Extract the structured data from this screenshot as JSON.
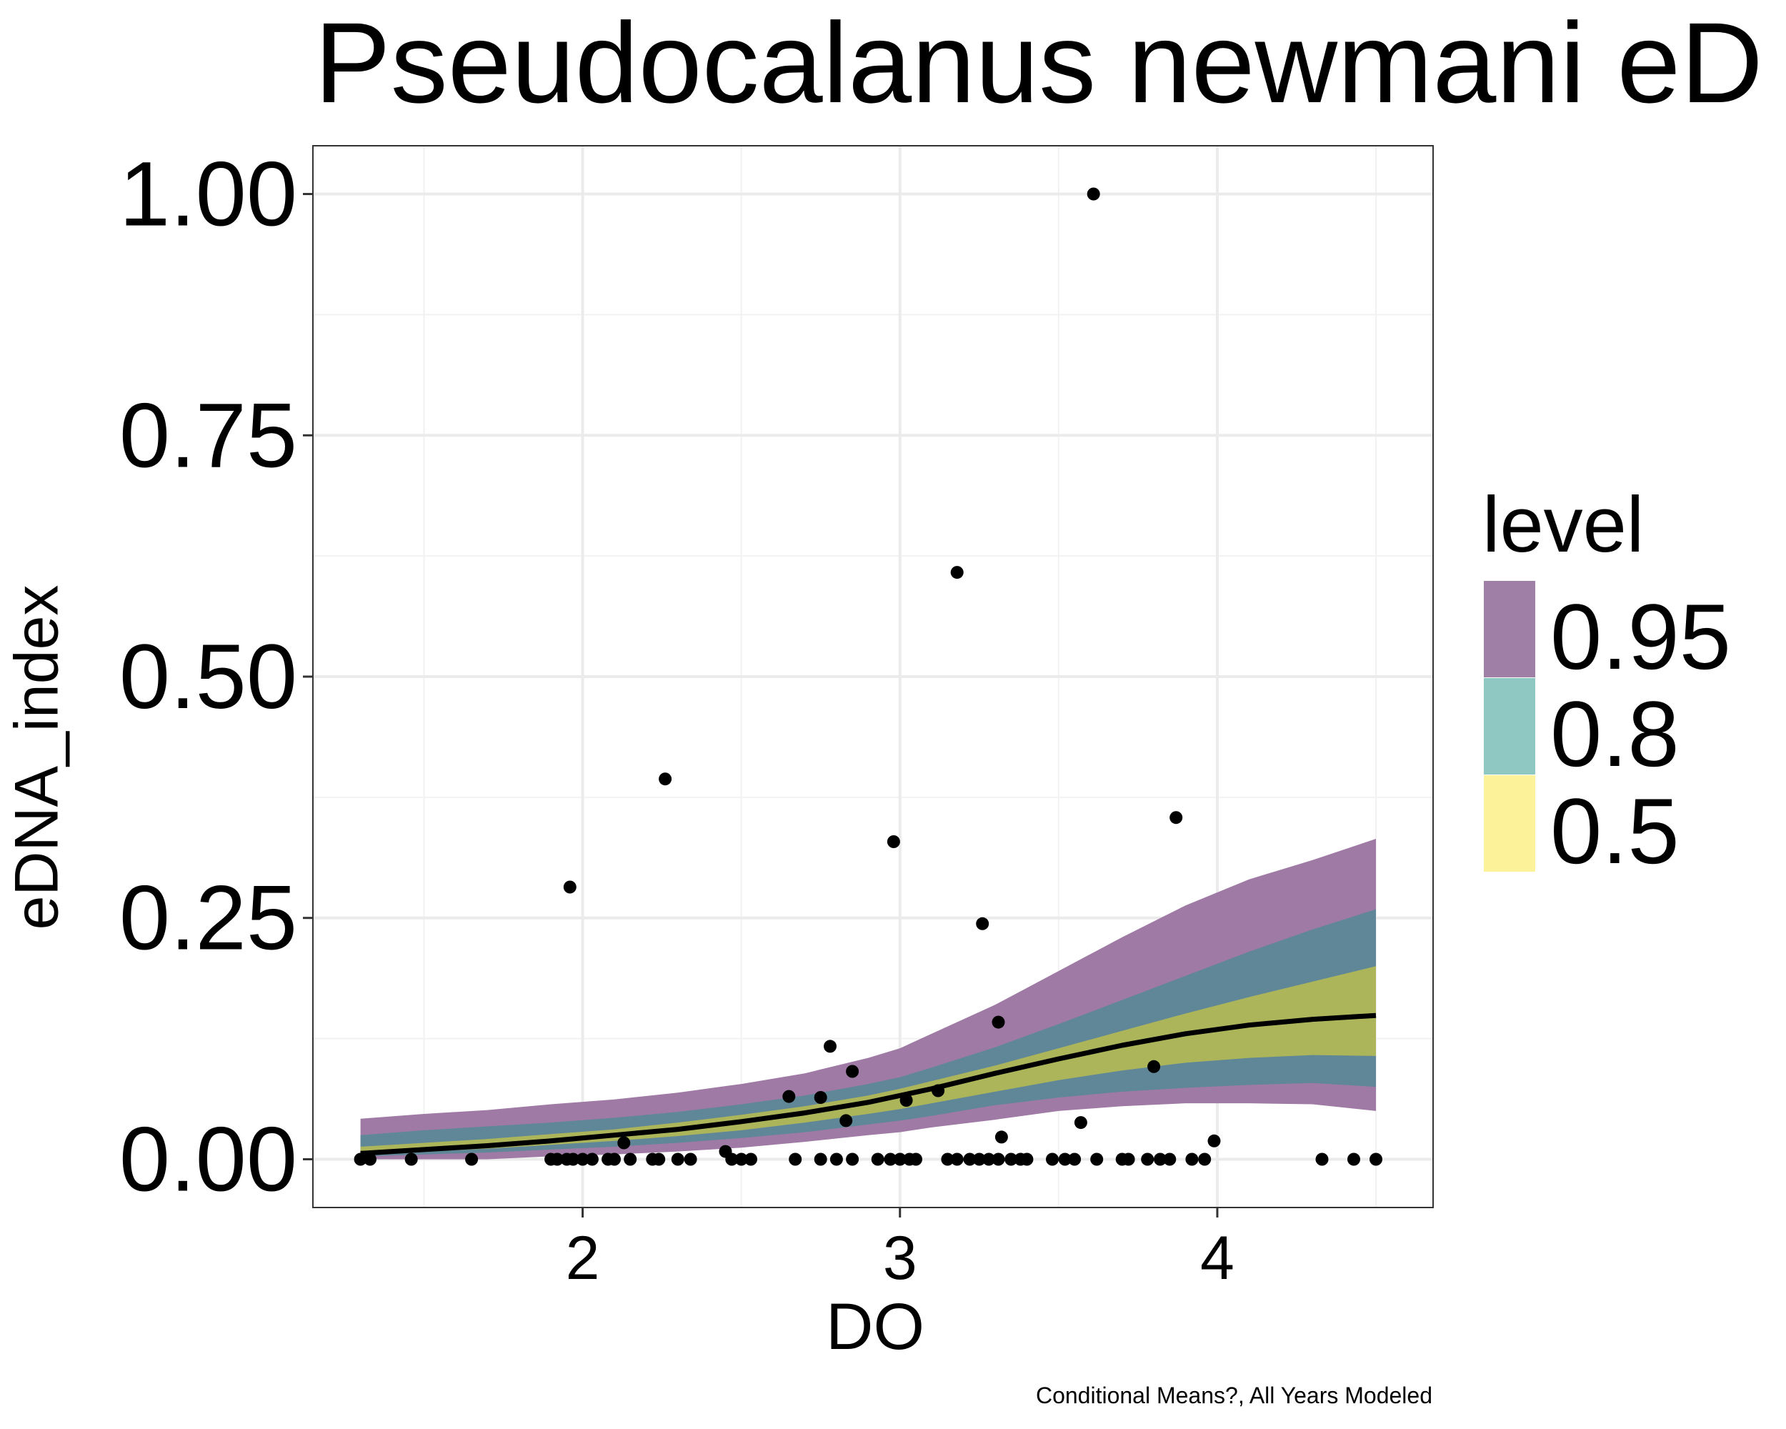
{
  "chart_data": {
    "type": "line",
    "title": "Pseudocalanus newmani eD",
    "caption": "Conditional Means?, All Years Modeled",
    "xlabel": "DO",
    "ylabel": "eDNA_index",
    "xlim": [
      1.15,
      4.68
    ],
    "ylim": [
      -0.05,
      1.05
    ],
    "x_ticks": [
      2,
      3,
      4
    ],
    "x_tick_labels": [
      "2",
      "3",
      "4"
    ],
    "y_ticks": [
      0,
      0.25,
      0.5,
      0.75,
      1.0
    ],
    "y_tick_labels": [
      "0.00",
      "0.25",
      "0.50",
      "0.75",
      "1.00"
    ],
    "grid": true,
    "legend": {
      "title": "level",
      "placement": "right",
      "entries": [
        {
          "label": "0.95",
          "color": "#a07fa6"
        },
        {
          "label": "0.8",
          "color": "#8fc7c2"
        },
        {
          "label": "0.5",
          "color": "#fbf299"
        }
      ]
    },
    "bands": [
      {
        "level": "0.95",
        "color": "#9e7aa4",
        "x": [
          1.3,
          1.5,
          1.7,
          1.9,
          2.1,
          2.3,
          2.5,
          2.7,
          2.9,
          3.0,
          3.1,
          3.3,
          3.5,
          3.7,
          3.9,
          4.1,
          4.3,
          4.5
        ],
        "lower": [
          0.0,
          0.0,
          0.0,
          0.003,
          0.005,
          0.008,
          0.012,
          0.018,
          0.025,
          0.028,
          0.033,
          0.041,
          0.05,
          0.055,
          0.058,
          0.058,
          0.057,
          0.05
        ],
        "upper": [
          0.042,
          0.047,
          0.051,
          0.057,
          0.062,
          0.069,
          0.078,
          0.089,
          0.105,
          0.115,
          0.13,
          0.16,
          0.195,
          0.23,
          0.263,
          0.29,
          0.31,
          0.332
        ]
      },
      {
        "level": "0.8",
        "color": "#5f8797",
        "x": [
          1.3,
          1.5,
          1.7,
          1.9,
          2.1,
          2.3,
          2.5,
          2.7,
          2.9,
          3.0,
          3.1,
          3.3,
          3.5,
          3.7,
          3.9,
          4.1,
          4.3,
          4.5
        ],
        "lower": [
          0.003,
          0.005,
          0.007,
          0.01,
          0.013,
          0.017,
          0.022,
          0.028,
          0.036,
          0.04,
          0.045,
          0.056,
          0.064,
          0.07,
          0.074,
          0.077,
          0.079,
          0.075
        ],
        "upper": [
          0.025,
          0.03,
          0.034,
          0.038,
          0.043,
          0.049,
          0.057,
          0.066,
          0.078,
          0.085,
          0.095,
          0.116,
          0.14,
          0.165,
          0.19,
          0.215,
          0.238,
          0.259
        ]
      },
      {
        "level": "0.5",
        "color": "#adb55b",
        "x": [
          1.3,
          1.5,
          1.7,
          1.9,
          2.1,
          2.3,
          2.5,
          2.7,
          2.9,
          3.0,
          3.1,
          3.3,
          3.5,
          3.7,
          3.9,
          4.1,
          4.3,
          4.5
        ],
        "lower": [
          0.005,
          0.008,
          0.011,
          0.015,
          0.019,
          0.024,
          0.03,
          0.038,
          0.047,
          0.052,
          0.058,
          0.07,
          0.082,
          0.092,
          0.1,
          0.105,
          0.108,
          0.107
        ],
        "upper": [
          0.013,
          0.017,
          0.021,
          0.026,
          0.031,
          0.038,
          0.046,
          0.055,
          0.066,
          0.073,
          0.081,
          0.097,
          0.115,
          0.133,
          0.151,
          0.168,
          0.184,
          0.2
        ]
      }
    ],
    "series": [
      {
        "x": [
          1.3,
          1.5,
          1.7,
          1.9,
          2.1,
          2.3,
          2.5,
          2.7,
          2.9,
          3.0,
          3.1,
          3.3,
          3.5,
          3.7,
          3.9,
          4.1,
          4.3,
          4.5
        ],
        "y": [
          0.006,
          0.01,
          0.014,
          0.019,
          0.025,
          0.031,
          0.039,
          0.048,
          0.059,
          0.066,
          0.073,
          0.089,
          0.104,
          0.118,
          0.13,
          0.139,
          0.145,
          0.149
        ],
        "color": "#000000"
      }
    ],
    "points": {
      "x": [
        1.3,
        1.33,
        1.46,
        1.65,
        1.9,
        1.92,
        1.95,
        1.97,
        2.0,
        2.03,
        2.08,
        2.1,
        2.15,
        2.22,
        2.24,
        2.3,
        2.34,
        2.47,
        2.5,
        2.53,
        2.67,
        2.75,
        2.8,
        2.85,
        2.93,
        2.97,
        3.0,
        3.03,
        3.05,
        3.15,
        3.18,
        3.22,
        3.25,
        3.28,
        3.31,
        3.35,
        3.38,
        3.4,
        3.48,
        3.52,
        3.55,
        3.62,
        3.7,
        3.72,
        3.78,
        3.82,
        3.85,
        3.92,
        3.96,
        4.33,
        4.43,
        4.5,
        1.96,
        2.26,
        2.98,
        3.18,
        3.26,
        3.61,
        3.87,
        3.31,
        2.78,
        2.85,
        2.83,
        3.02,
        3.8,
        3.57,
        3.32,
        2.45,
        2.13,
        3.99,
        2.65,
        2.75,
        3.12
      ],
      "y": [
        0,
        0,
        0,
        0,
        0,
        0,
        0,
        0,
        0,
        0,
        0,
        0,
        0,
        0,
        0,
        0,
        0,
        0,
        0,
        0,
        0,
        0,
        0,
        0,
        0,
        0,
        0,
        0,
        0,
        0,
        0,
        0,
        0,
        0,
        0,
        0,
        0,
        0,
        0,
        0,
        0,
        0,
        0,
        0,
        0,
        0,
        0,
        0,
        0,
        0,
        0,
        0,
        0.282,
        0.394,
        0.329,
        0.608,
        0.244,
        1.0,
        0.354,
        0.142,
        0.117,
        0.091,
        0.04,
        0.061,
        0.096,
        0.038,
        0.023,
        0.008,
        0.017,
        0.019,
        0.065,
        0.064,
        0.071
      ]
    }
  }
}
